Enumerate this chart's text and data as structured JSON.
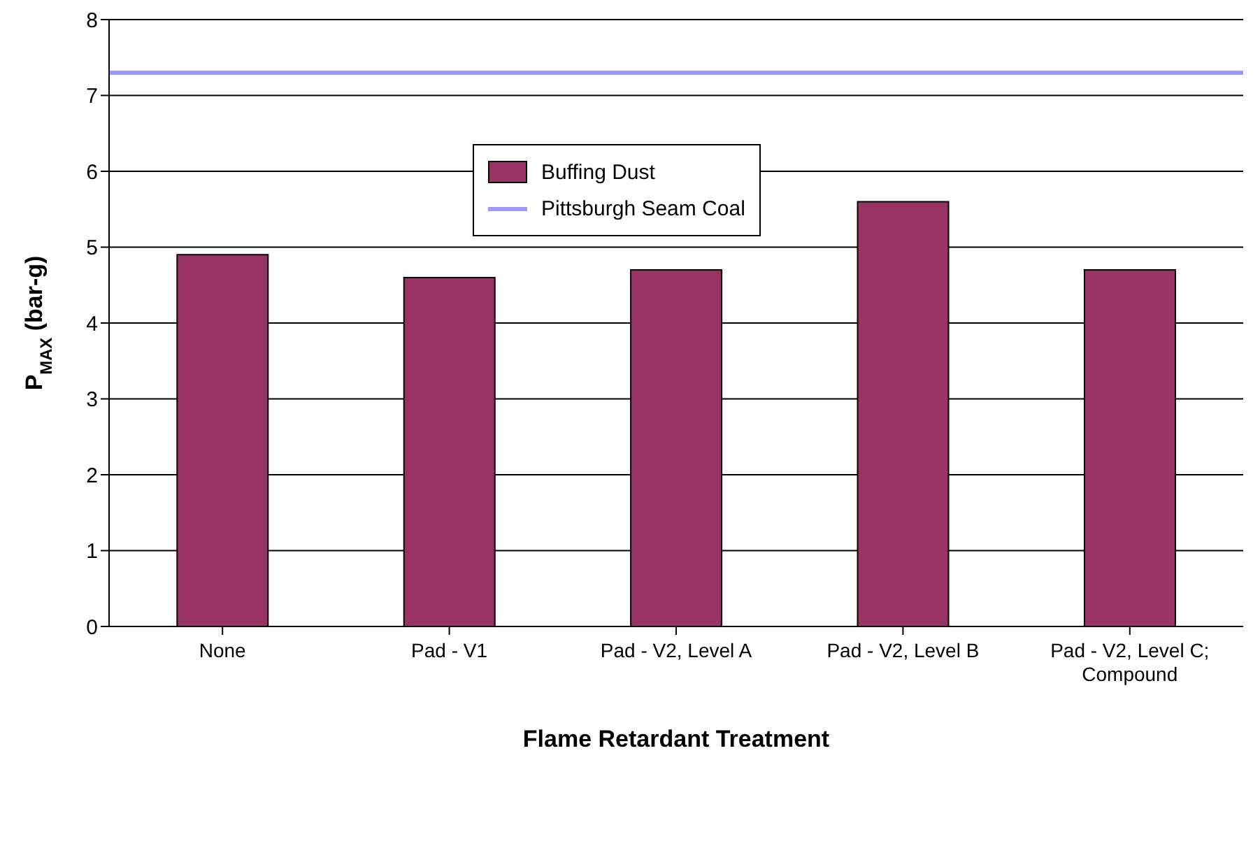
{
  "chart_data": {
    "type": "bar",
    "xlabel": "Flame Retardant Treatment",
    "ylabel": "P$_{MAX}$ (bar-g)",
    "categories": [
      "None",
      "Pad - V1",
      "Pad - V2, Level A",
      "Pad - V2, Level B",
      "Pad - V2, Level C; Compound"
    ],
    "series": [
      {
        "name": "Buffing Dust",
        "color": "#993366",
        "values": [
          4.9,
          4.6,
          4.7,
          5.6,
          4.7
        ]
      }
    ],
    "ref_lines": [
      {
        "axis": "y",
        "value": 7.3,
        "label": "Pittsburgh Seam Coal",
        "color": "#9999ff"
      }
    ],
    "ylim": [
      0,
      8
    ],
    "yticks": [
      0,
      1,
      2,
      3,
      4,
      5,
      6,
      7,
      8
    ],
    "grid": "y",
    "legend": "top"
  }
}
